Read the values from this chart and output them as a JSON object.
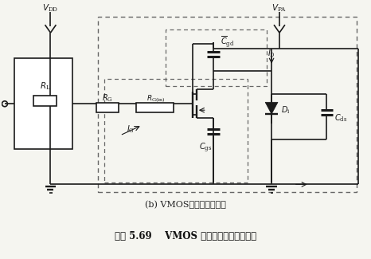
{
  "title_sub": "(b) VMOS的关断等效电路",
  "title_main": "续图 5.69    VMOS 的开通与关断等效电路",
  "bg_color": "#f5f5f0",
  "line_color": "#1a1a1a",
  "text_color": "#1a1a1a",
  "fig_width": 4.66,
  "fig_height": 3.25,
  "dpi": 100
}
